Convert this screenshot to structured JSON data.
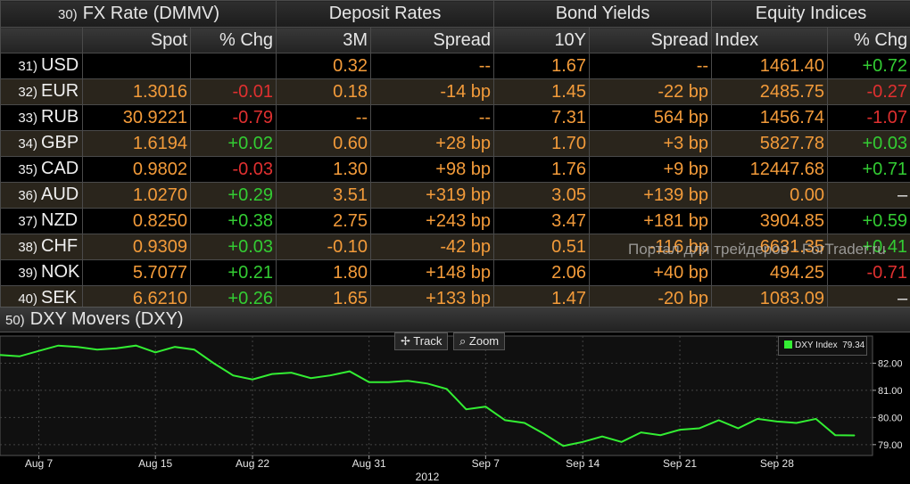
{
  "groups": {
    "fx": {
      "num": "30)",
      "label": "FX Rate (DMMV)"
    },
    "deposit": "Deposit Rates",
    "bond": "Bond Yields",
    "equity": "Equity Indices"
  },
  "headers": {
    "spot": "Spot",
    "spot_chg": "% Chg",
    "m3": "3M",
    "dep_spread": "Spread",
    "y10": "10Y",
    "bond_spread": "Spread",
    "index": "Index",
    "idx_chg": "% Chg"
  },
  "rows": [
    {
      "num": "31)",
      "ccy": "USD",
      "spot": "",
      "spot_chg": "",
      "m3": "0.32",
      "dep_spread": "--",
      "y10": "1.67",
      "bond_spread": "--",
      "index": "1461.40",
      "idx_chg": "+0.72"
    },
    {
      "num": "32)",
      "ccy": "EUR",
      "spot": "1.3016",
      "spot_chg": "-0.01",
      "m3": "0.18",
      "dep_spread": "-14 bp",
      "y10": "1.45",
      "bond_spread": "-22 bp",
      "index": "2485.75",
      "idx_chg": "-0.27"
    },
    {
      "num": "33)",
      "ccy": "RUB",
      "spot": "30.9221",
      "spot_chg": "-0.79",
      "m3": "--",
      "dep_spread": "--",
      "y10": "7.31",
      "bond_spread": "564 bp",
      "index": "1456.74",
      "idx_chg": "-1.07"
    },
    {
      "num": "34)",
      "ccy": "GBP",
      "spot": "1.6194",
      "spot_chg": "+0.02",
      "m3": "0.60",
      "dep_spread": "+28 bp",
      "y10": "1.70",
      "bond_spread": "+3 bp",
      "index": "5827.78",
      "idx_chg": "+0.03"
    },
    {
      "num": "35)",
      "ccy": "CAD",
      "spot": "0.9802",
      "spot_chg": "-0.03",
      "m3": "1.30",
      "dep_spread": "+98 bp",
      "y10": "1.76",
      "bond_spread": "+9 bp",
      "index": "12447.68",
      "idx_chg": "+0.71"
    },
    {
      "num": "36)",
      "ccy": "AUD",
      "spot": "1.0270",
      "spot_chg": "+0.29",
      "m3": "3.51",
      "dep_spread": "+319 bp",
      "y10": "3.05",
      "bond_spread": "+139 bp",
      "index": "0.00",
      "idx_chg": "–"
    },
    {
      "num": "37)",
      "ccy": "NZD",
      "spot": "0.8250",
      "spot_chg": "+0.38",
      "m3": "2.75",
      "dep_spread": "+243 bp",
      "y10": "3.47",
      "bond_spread": "+181 bp",
      "index": "3904.85",
      "idx_chg": "+0.59"
    },
    {
      "num": "38)",
      "ccy": "CHF",
      "spot": "0.9309",
      "spot_chg": "+0.03",
      "m3": "-0.10",
      "dep_spread": "-42 bp",
      "y10": "0.51",
      "bond_spread": "-116 bp",
      "index": "6631.35",
      "idx_chg": "+0.41"
    },
    {
      "num": "39)",
      "ccy": "NOK",
      "spot": "5.7077",
      "spot_chg": "+0.21",
      "m3": "1.80",
      "dep_spread": "+148 bp",
      "y10": "2.06",
      "bond_spread": "+40 bp",
      "index": "494.25",
      "idx_chg": "-0.71"
    },
    {
      "num": "40)",
      "ccy": "SEK",
      "spot": "6.6210",
      "spot_chg": "+0.26",
      "m3": "1.65",
      "dep_spread": "+133 bp",
      "y10": "1.47",
      "bond_spread": "-20 bp",
      "index": "1083.09",
      "idx_chg": "–"
    }
  ],
  "watermark": "Портал для трейдеров - ForTrader.ru",
  "chart_panel": {
    "num": "50)",
    "title": "DXY Movers (DXY)"
  },
  "toolbar": {
    "track_label": "Track",
    "zoom_label": "Zoom",
    "track_icon": "crosshair-icon",
    "zoom_icon": "magnifier-icon"
  },
  "colors": {
    "positive": "#33cc33",
    "negative": "#e03030",
    "value": "#f39b3a",
    "line": "#33ee33"
  },
  "chart_data": {
    "type": "line",
    "series": [
      {
        "name": "DXY Index",
        "last_label": "79.34",
        "values": [
          82.3,
          82.25,
          82.45,
          82.65,
          82.6,
          82.5,
          82.55,
          82.65,
          82.4,
          82.6,
          82.5,
          82.0,
          81.55,
          81.4,
          81.6,
          81.65,
          81.45,
          81.55,
          81.7,
          81.3,
          81.3,
          81.35,
          81.25,
          81.05,
          80.3,
          80.4,
          79.9,
          79.8,
          79.4,
          78.95,
          79.1,
          79.3,
          79.1,
          79.45,
          79.35,
          79.55,
          79.6,
          79.9,
          79.6,
          79.95,
          79.85,
          79.8,
          79.95,
          79.35,
          79.34
        ]
      }
    ],
    "x_ticks": [
      {
        "label": "Aug 7",
        "i": 2
      },
      {
        "label": "Aug 15",
        "i": 8
      },
      {
        "label": "Aug 22",
        "i": 13
      },
      {
        "label": "Aug 31",
        "i": 19
      },
      {
        "label": "Sep 7",
        "i": 25
      },
      {
        "label": "Sep 14",
        "i": 30
      },
      {
        "label": "Sep 21",
        "i": 35
      },
      {
        "label": "Sep 28",
        "i": 40
      }
    ],
    "y_ticks": [
      82.0,
      81.0,
      80.0,
      79.0
    ],
    "y_tick_labels": [
      "82.00",
      "81.00",
      "80.00",
      "79.00"
    ],
    "ylim": [
      78.6,
      83.0
    ],
    "year_label": "2012",
    "legend": "top-right",
    "grid": true
  }
}
